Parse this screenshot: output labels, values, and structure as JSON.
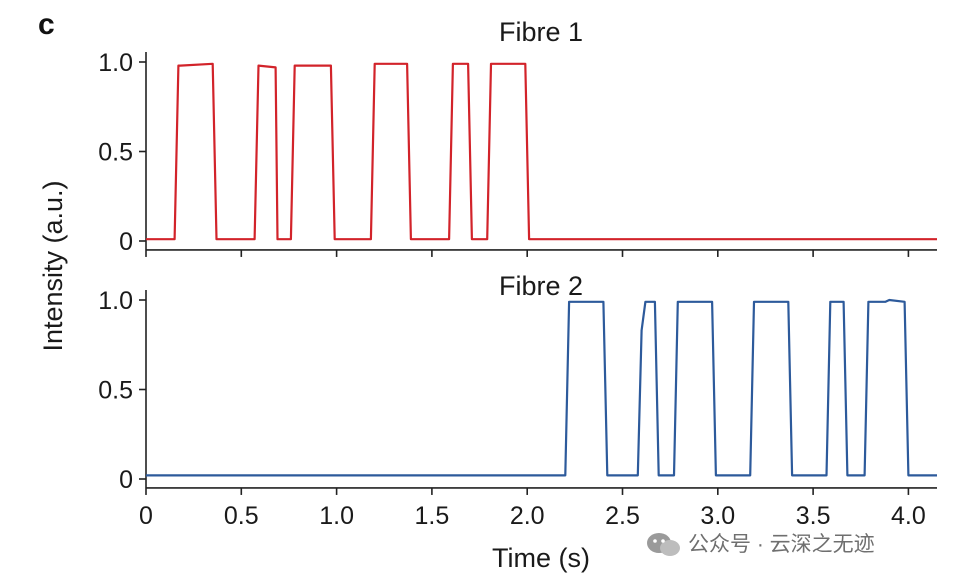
{
  "panel_label": "c",
  "watermark": "公众号 · 云深之无迹",
  "chart_data": [
    {
      "type": "line",
      "title": "Fibre 1",
      "ylabel": "Intensity (a.u.)",
      "xlabel": "",
      "xlim": [
        0,
        4.15
      ],
      "ylim": [
        -0.05,
        1.05
      ],
      "yticks": [
        "0",
        "0.5",
        "1.0"
      ],
      "ytick_values": [
        0,
        0.5,
        1.0
      ],
      "series": [
        {
          "color": "#d2232a",
          "x": [
            0,
            0.15,
            0.17,
            0.18,
            0.35,
            0.37,
            0.57,
            0.59,
            0.68,
            0.69,
            0.76,
            0.78,
            0.97,
            0.99,
            1.18,
            1.2,
            1.37,
            1.39,
            1.59,
            1.61,
            1.69,
            1.71,
            1.79,
            1.81,
            1.99,
            2.01,
            4.15
          ],
          "y": [
            0.01,
            0.01,
            0.98,
            0.98,
            0.99,
            0.01,
            0.01,
            0.98,
            0.97,
            0.01,
            0.01,
            0.98,
            0.98,
            0.01,
            0.01,
            0.99,
            0.99,
            0.01,
            0.01,
            0.99,
            0.99,
            0.01,
            0.01,
            0.99,
            0.99,
            0.01,
            0.01
          ]
        }
      ]
    },
    {
      "type": "line",
      "title": "Fibre 2",
      "ylabel": "Intensity (a.u.)",
      "xlabel": "Time (s)",
      "xlim": [
        0,
        4.15
      ],
      "ylim": [
        -0.05,
        1.05
      ],
      "yticks": [
        "0",
        "0.5",
        "1.0"
      ],
      "ytick_values": [
        0,
        0.5,
        1.0
      ],
      "xticks": [
        "0",
        "0.5",
        "1.0",
        "1.5",
        "2.0",
        "2.5",
        "3.0",
        "3.5",
        "4.0"
      ],
      "xtick_values": [
        0,
        0.5,
        1.0,
        1.5,
        2.0,
        2.5,
        3.0,
        3.5,
        4.0
      ],
      "series": [
        {
          "color": "#2d5a9b",
          "x": [
            0,
            2.2,
            2.22,
            2.4,
            2.42,
            2.58,
            2.6,
            2.62,
            2.67,
            2.69,
            2.77,
            2.79,
            2.97,
            2.99,
            3.17,
            3.19,
            3.37,
            3.39,
            3.57,
            3.59,
            3.66,
            3.68,
            3.77,
            3.79,
            3.88,
            3.9,
            3.98,
            4.0,
            4.15
          ],
          "y": [
            0.02,
            0.02,
            0.99,
            0.99,
            0.02,
            0.02,
            0.83,
            0.99,
            0.99,
            0.02,
            0.02,
            0.99,
            0.99,
            0.02,
            0.02,
            0.99,
            0.99,
            0.02,
            0.02,
            0.99,
            0.99,
            0.02,
            0.02,
            0.99,
            0.99,
            1.0,
            0.99,
            0.02,
            0.02
          ]
        }
      ]
    }
  ]
}
